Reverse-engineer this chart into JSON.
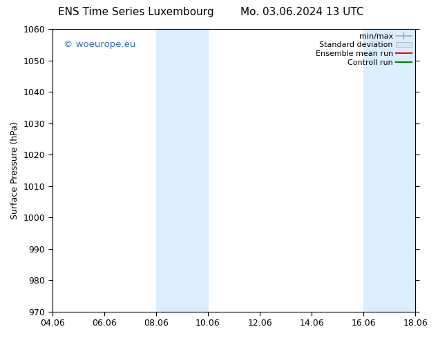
{
  "title_left": "ENS Time Series Luxembourg",
  "title_right": "Mo. 03.06.2024 13 UTC",
  "ylabel": "Surface Pressure (hPa)",
  "ylim": [
    970,
    1060
  ],
  "yticks": [
    970,
    980,
    990,
    1000,
    1010,
    1020,
    1030,
    1040,
    1050,
    1060
  ],
  "xtick_labels": [
    "04.06",
    "06.06",
    "08.06",
    "10.06",
    "12.06",
    "14.06",
    "16.06",
    "18.06"
  ],
  "xtick_positions": [
    0,
    2,
    4,
    6,
    8,
    10,
    12,
    14
  ],
  "xlim": [
    0,
    14
  ],
  "band1_start": 4.0,
  "band1_end": 6.0,
  "band2_start": 12.0,
  "band2_end": 14.0,
  "band_color": "#daeeff",
  "watermark": "© woeurope.eu",
  "watermark_color": "#3366cc",
  "background_color": "#ffffff",
  "title_fontsize": 11,
  "axis_label_fontsize": 9,
  "tick_fontsize": 9,
  "legend_fontsize": 8,
  "minmax_color": "#aaaaaa",
  "std_color": "#d0e8f8",
  "ensemble_color": "#ff0000",
  "control_color": "#008000"
}
